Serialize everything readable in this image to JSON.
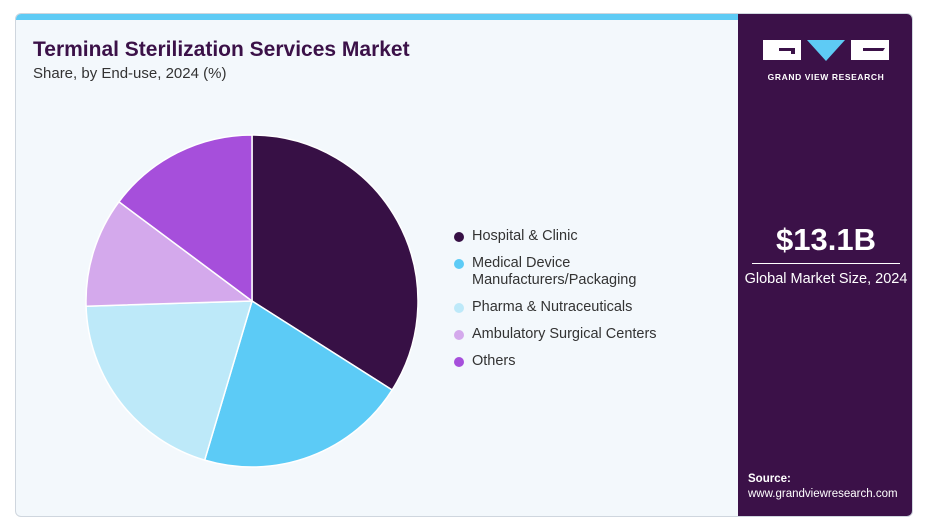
{
  "header": {
    "title": "Terminal Sterilization Services Market",
    "subtitle": "Share, by End-use, 2024 (%)"
  },
  "chart_data": {
    "type": "pie",
    "title": "Terminal Sterilization Services Market",
    "subtitle": "Share, by End-use, 2024 (%)",
    "start_angle": "12 o'clock, clockwise",
    "legend_position": "right",
    "slices": [
      {
        "name": "Hospital & Clinic",
        "value": 34.0,
        "color": "#371045"
      },
      {
        "name": "Medical Device Manufacturers/Packaging",
        "value": 20.6,
        "color": "#5ccbf6"
      },
      {
        "name": "Pharma & Nutraceuticals",
        "value": 19.9,
        "color": "#bde9f9"
      },
      {
        "name": "Ambulatory Surgical Centers",
        "value": 10.7,
        "color": "#d4a9ec"
      },
      {
        "name": "Others",
        "value": 14.8,
        "color": "#a64fdb"
      }
    ]
  },
  "legend": [
    "Hospital & Clinic",
    "Medical Device Manufacturers/Packaging",
    "Pharma & Nutraceuticals",
    "Ambulatory Surgical Centers",
    "Others"
  ],
  "sidebar": {
    "logo_text": "GRAND VIEW RESEARCH",
    "market_size": "$13.1B",
    "market_size_label": "Global Market Size, 2024",
    "source_label": "Source:",
    "source_url": "www.grandviewresearch.com"
  }
}
